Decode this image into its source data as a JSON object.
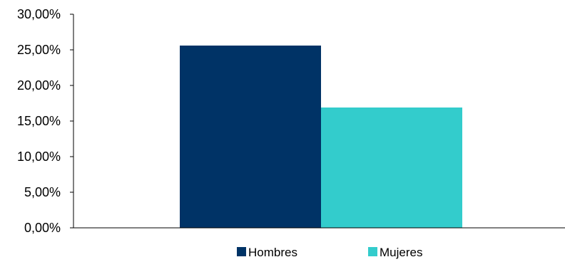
{
  "chart_data": {
    "type": "bar",
    "title": "",
    "xlabel": "",
    "ylabel": "",
    "ylim": [
      0,
      30
    ],
    "y_ticks": [
      "0,00%",
      "5,00%",
      "10,00%",
      "15,00%",
      "20,00%",
      "25,00%",
      "30,00%"
    ],
    "y_tick_values": [
      0,
      5,
      10,
      15,
      20,
      25,
      30
    ],
    "categories": [
      ""
    ],
    "series": [
      {
        "name": "Hombres",
        "values": [
          25.6
        ],
        "color": "#003366"
      },
      {
        "name": "Mujeres",
        "values": [
          16.9
        ],
        "color": "#33CCCC"
      }
    ],
    "legend_position": "bottom",
    "grid": false
  }
}
